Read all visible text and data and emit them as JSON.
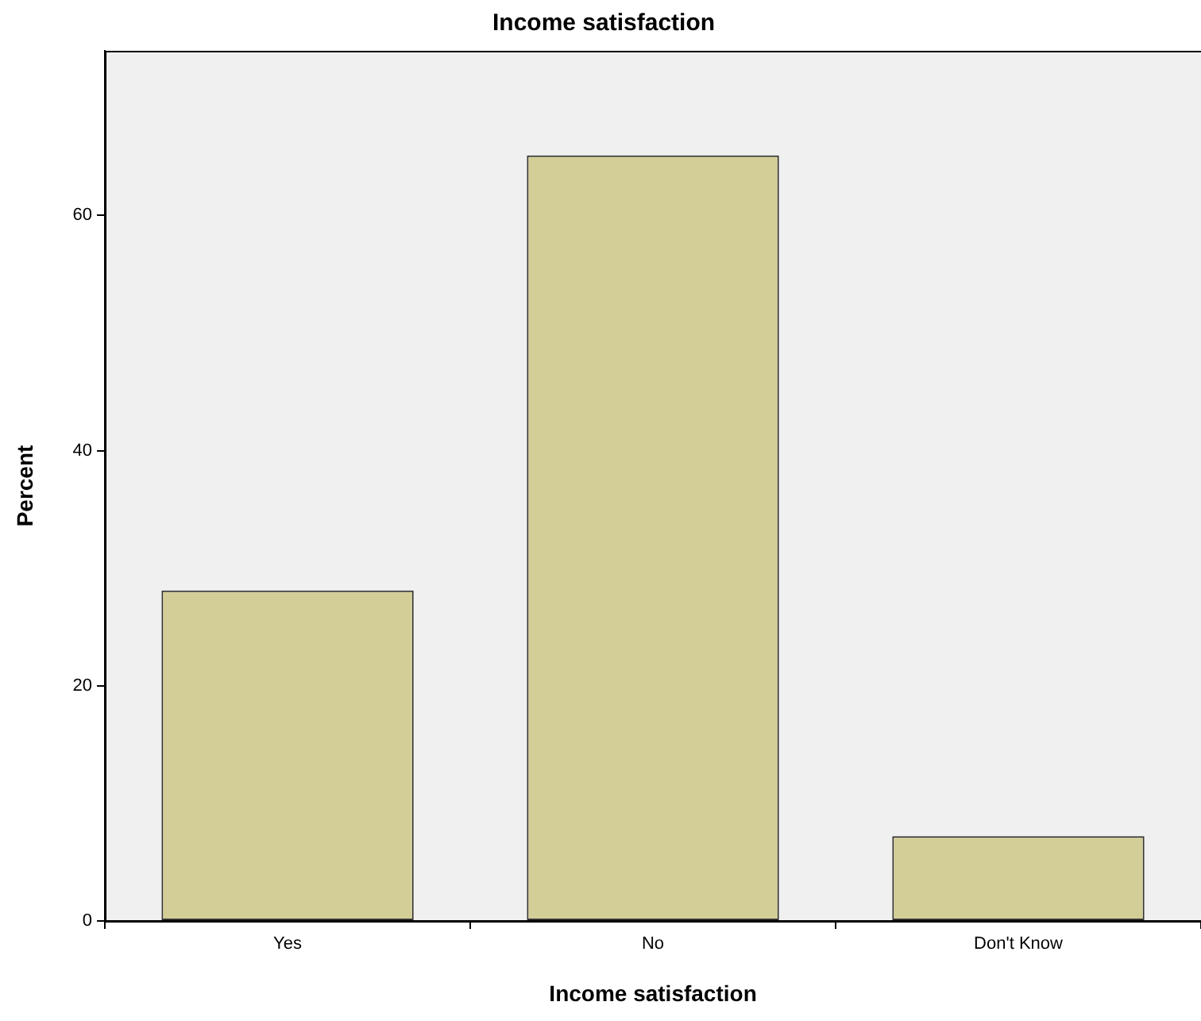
{
  "chart_data": {
    "type": "bar",
    "title": "Income satisfaction",
    "xlabel": "Income satisfaction",
    "ylabel": "Percent",
    "categories": [
      "Yes",
      "No",
      "Don't Know"
    ],
    "values": [
      28.1,
      65.1,
      7.2
    ],
    "color": "#d3ce97",
    "ylim": [
      0,
      74
    ],
    "yticks": [
      0,
      20,
      40,
      60
    ],
    "grid": false,
    "legend": false
  }
}
